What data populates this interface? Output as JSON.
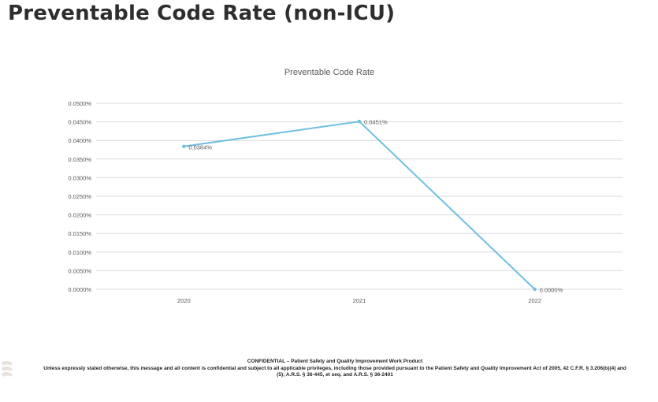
{
  "slide": {
    "title": "Preventable Code Rate (non-ICU)"
  },
  "chart_data": {
    "type": "line",
    "title": "Preventable Code Rate",
    "categories": [
      "2020",
      "2021",
      "2022"
    ],
    "series": [
      {
        "values": [
          0.0384,
          0.0451,
          0.0
        ],
        "labels": [
          "0.0384%",
          "0.0451%",
          "0.0000%"
        ],
        "color": "#6fbfe0"
      }
    ],
    "ylim": [
      0,
      0.05
    ],
    "yticks": [
      "0.0000%",
      "0.0050%",
      "0.0100%",
      "0.0150%",
      "0.0200%",
      "0.0250%",
      "0.0300%",
      "0.0350%",
      "0.0400%",
      "0.0450%",
      "0.0500%"
    ],
    "grid": true,
    "legend": false
  },
  "footer": {
    "confidential": "CONFIDENTIAL – Patient Safety and Quality Improvement Work Product",
    "notice": "Unless expressly stated otherwise, this message and all content is confidential and subject to all applicable privileges, including those provided pursuant to the Patient Safety and Quality Improvement Act of 2005, 42 C.F.R. § 3.206(b)(4) and (5); A.R.S. § 36-445, et seq. and A.R.S. § 36-2401"
  },
  "colors": {
    "line": "#6fbfe0",
    "grid": "#d9d9d9",
    "axis_text": "#595959"
  }
}
